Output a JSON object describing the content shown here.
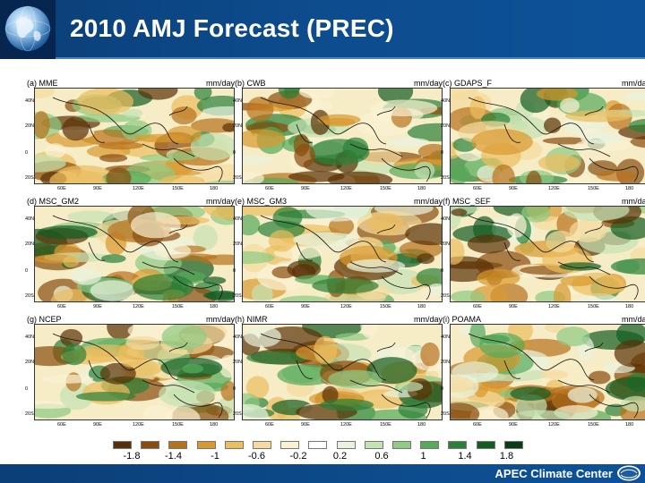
{
  "header": {
    "title": "2010 AMJ Forecast (PREC)"
  },
  "panels": [
    {
      "label": "(a) MME",
      "unit": "mm/day"
    },
    {
      "label": "(b) CWB",
      "unit": "mm/day"
    },
    {
      "label": "(c) GDAPS_F",
      "unit": "mm/day"
    },
    {
      "label": "(d) MSC_GM2",
      "unit": "mm/day"
    },
    {
      "label": "(e) MSC_GM3",
      "unit": "mm/day"
    },
    {
      "label": "(f) MSC_SEF",
      "unit": "mm/day"
    },
    {
      "label": "(g) NCEP",
      "unit": "mm/day"
    },
    {
      "label": "(h) NIMR",
      "unit": "mm/day"
    },
    {
      "label": "(i) POAMA",
      "unit": "mm/day"
    }
  ],
  "lat_labels": [
    "40N",
    "20N",
    "0",
    "20S"
  ],
  "lon_labels": [
    "60E",
    "90E",
    "120E",
    "150E",
    "180"
  ],
  "colorbar": {
    "labels": [
      "-1.8",
      "-1.4",
      "-1",
      "-0.6",
      "-0.2",
      "0.2",
      "0.6",
      "1",
      "1.4",
      "1.8"
    ],
    "colors": [
      "#5a3006",
      "#8a4d0e",
      "#b8721c",
      "#d9982e",
      "#ecbe5e",
      "#f5dc9e",
      "#fbf2d4",
      "#ffffff",
      "#e8f4df",
      "#c4e3b3",
      "#8fcb83",
      "#55a95a",
      "#2a8038",
      "#135c22",
      "#0a3d15"
    ]
  },
  "footer": {
    "text": "APEC Climate Center",
    "logo": "apcc"
  }
}
